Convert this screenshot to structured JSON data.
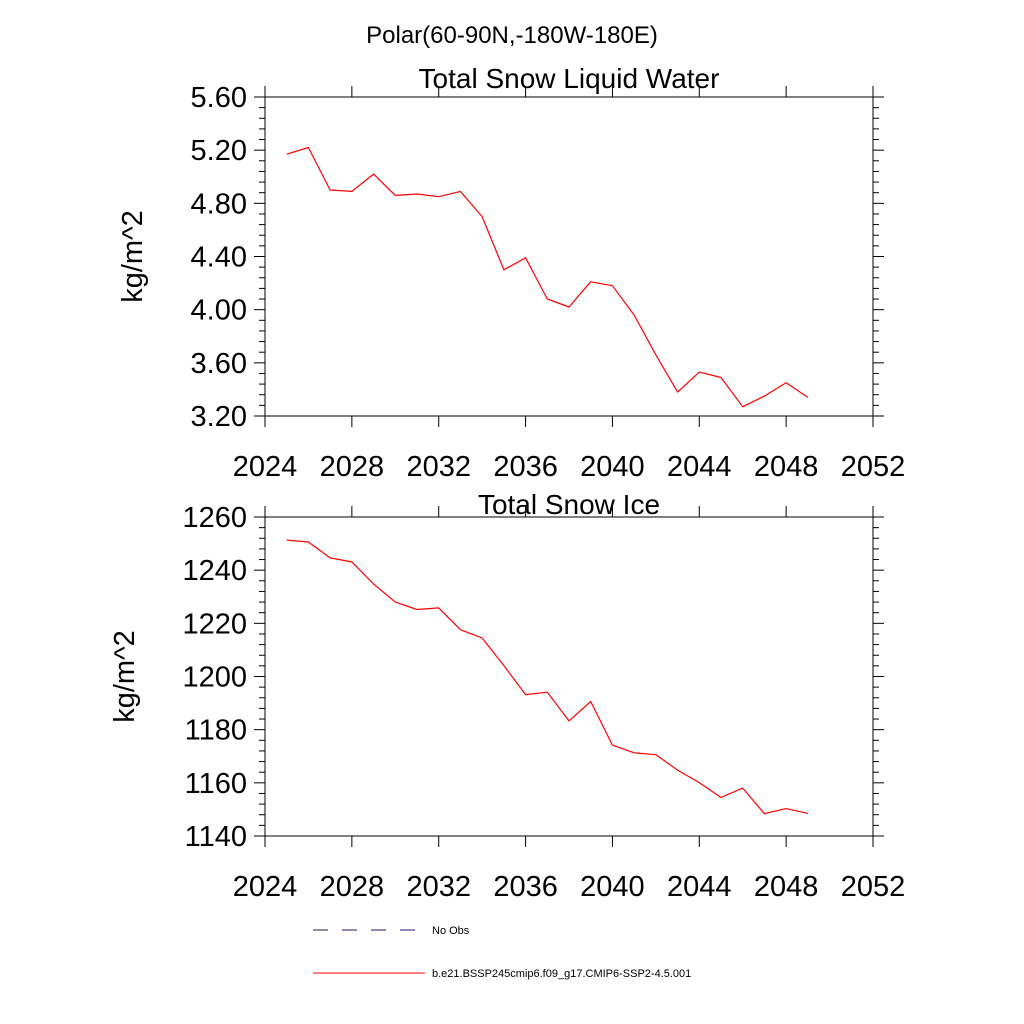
{
  "figure": {
    "suptitle": "Polar(60-90N,-180W-180E)"
  },
  "chart_data": [
    {
      "type": "line",
      "title": "Total Snow Liquid Water",
      "ylabel": "kg/m^2",
      "xlabel": "",
      "xlim": [
        2024,
        2052
      ],
      "ylim": [
        3.2,
        5.6
      ],
      "xticks": [
        2024,
        2028,
        2032,
        2036,
        2040,
        2044,
        2048,
        2052
      ],
      "xtick_labels": [
        "2024",
        "2028",
        "2032",
        "2036",
        "2040",
        "2044",
        "2048",
        "2052"
      ],
      "yticks": [
        3.2,
        3.6,
        4.0,
        4.4,
        4.8,
        5.2,
        5.6
      ],
      "ytick_labels": [
        "3.20",
        "3.60",
        "4.00",
        "4.40",
        "4.80",
        "5.20",
        "5.60"
      ],
      "grid": false,
      "series": [
        {
          "name": "b.e21.BSSP245cmip6.f09_g17.CMIP6-SSP2-4.5.001",
          "color": "#ff0000",
          "x": [
            2025,
            2026,
            2027,
            2028,
            2029,
            2030,
            2031,
            2032,
            2033,
            2034,
            2035,
            2036,
            2037,
            2038,
            2039,
            2040,
            2041,
            2042,
            2043,
            2044,
            2045,
            2046,
            2047,
            2048,
            2049
          ],
          "y": [
            5.17,
            5.22,
            4.9,
            4.89,
            5.02,
            4.86,
            4.87,
            4.85,
            4.89,
            4.7,
            4.3,
            4.39,
            4.08,
            4.02,
            4.21,
            4.18,
            3.96,
            3.66,
            3.38,
            3.53,
            3.49,
            3.27,
            3.35,
            3.45,
            3.34
          ]
        }
      ]
    },
    {
      "type": "line",
      "title": "Total Snow Ice",
      "ylabel": "kg/m^2",
      "xlabel": "",
      "xlim": [
        2024,
        2052
      ],
      "ylim": [
        1140,
        1260
      ],
      "xticks": [
        2024,
        2028,
        2032,
        2036,
        2040,
        2044,
        2048,
        2052
      ],
      "xtick_labels": [
        "2024",
        "2028",
        "2032",
        "2036",
        "2040",
        "2044",
        "2048",
        "2052"
      ],
      "yticks": [
        1140,
        1160,
        1180,
        1200,
        1220,
        1240,
        1260
      ],
      "ytick_labels": [
        "1140",
        "1160",
        "1180",
        "1200",
        "1220",
        "1240",
        "1260"
      ],
      "grid": false,
      "series": [
        {
          "name": "b.e21.BSSP245cmip6.f09_g17.CMIP6-SSP2-4.5.001",
          "color": "#ff0000",
          "x": [
            2025,
            2026,
            2027,
            2028,
            2029,
            2030,
            2031,
            2032,
            2033,
            2034,
            2035,
            2036,
            2037,
            2038,
            2039,
            2040,
            2041,
            2042,
            2043,
            2044,
            2045,
            2046,
            2047,
            2048,
            2049
          ],
          "y": [
            1251.3,
            1250.6,
            1244.6,
            1243.1,
            1234.8,
            1228.0,
            1225.2,
            1225.8,
            1217.6,
            1214.5,
            1204.1,
            1193.2,
            1194.1,
            1183.3,
            1190.6,
            1174.2,
            1171.3,
            1170.6,
            1164.8,
            1160.1,
            1154.5,
            1158.0,
            1148.4,
            1150.3,
            1148.5
          ]
        }
      ]
    }
  ],
  "legend": {
    "placement": "bottom-center",
    "entries": [
      {
        "label": "No Obs",
        "color": "#1a1a6e",
        "style": "dashed"
      },
      {
        "label": "b.e21.BSSP245cmip6.f09_g17.CMIP6-SSP2-4.5.001",
        "color": "#ff0000",
        "style": "solid"
      }
    ]
  }
}
